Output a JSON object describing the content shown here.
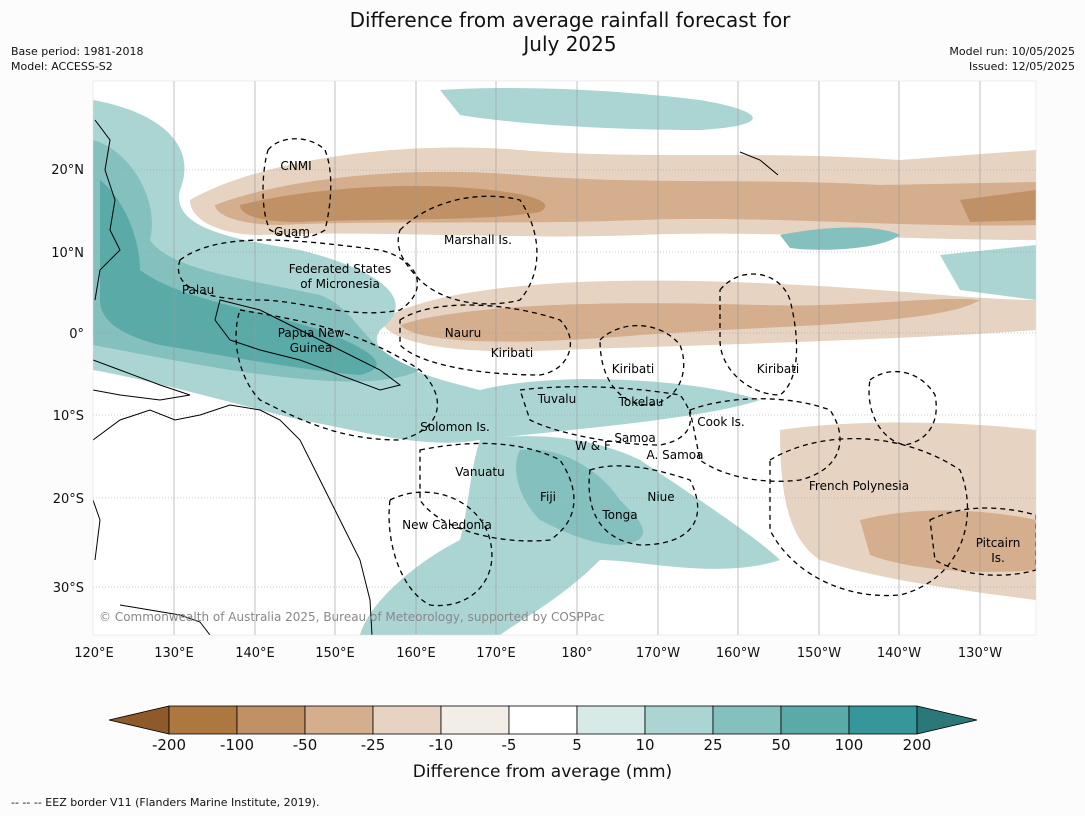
{
  "header": {
    "title_line1": "Difference from average rainfall forecast for",
    "title_line2": "July 2025",
    "base_period": "Base period: 1981-2018",
    "model": "Model: ACCESS-S2",
    "model_run": "Model run: 10/05/2025",
    "issued": "Issued: 12/05/2025"
  },
  "map": {
    "copyright": "© Commonwealth of Australia 2025, Bureau of Meteorology, supported by COSPPac",
    "lat_labels": [
      "20°N",
      "10°N",
      "0°",
      "10°S",
      "20°S",
      "30°S"
    ],
    "lon_labels": [
      "120°E",
      "130°E",
      "140°E",
      "150°E",
      "160°E",
      "170°E",
      "180°",
      "170°W",
      "160°W",
      "150°W",
      "140°W",
      "130°W"
    ],
    "regions": {
      "cnmi": "CNMI",
      "guam": "Guam",
      "marshall": "Marshall Is.",
      "fsm_1": "Federated States",
      "fsm_2": "of Micronesia",
      "palau": "Palau",
      "nauru": "Nauru",
      "png_1": "Papua New",
      "png_2": "Guinea",
      "kiribati_w": "Kiribati",
      "kiribati_c": "Kiribati",
      "kiribati_e": "Kiribati",
      "tuvalu": "Tuvalu",
      "tokelau": "Tokelau",
      "cook": "Cook Is.",
      "solomon": "Solomon Is.",
      "samoa": "Samoa",
      "wf": "W & F",
      "asamoa": "A. Samoa",
      "vanuatu": "Vanuatu",
      "fiji": "Fiji",
      "niue": "Niue",
      "tonga": "Tonga",
      "frpoly": "French Polynesia",
      "newcal": "New Caledonia",
      "pitcairn_1": "Pitcairn",
      "pitcairn_2": "Is."
    }
  },
  "colorbar": {
    "title": "Difference from average (mm)",
    "ticks": [
      "-200",
      "-100",
      "-50",
      "-25",
      "-10",
      "-5",
      "5",
      "10",
      "25",
      "50",
      "100",
      "200"
    ],
    "colors": [
      "#8f5a2b",
      "#ad7740",
      "#c09165",
      "#d4ae8d",
      "#e6d3c1",
      "#f2ede6",
      "#ffffff",
      "#d6eae8",
      "#abd5d3",
      "#84c0be",
      "#5aaaa8",
      "#35979a",
      "#2a7877"
    ]
  },
  "footnote": "--  --  -- EEZ border V11 (Flanders Marine Institute, 2019)."
}
